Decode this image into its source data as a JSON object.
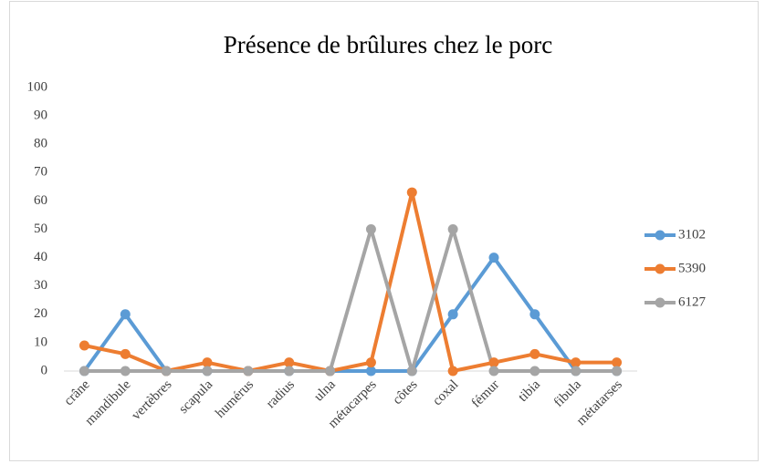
{
  "chart_data": {
    "type": "line",
    "title": "Présence de brûlures chez le porc",
    "categories": [
      "crâne",
      "mandibule",
      "vertèbres",
      "scapula",
      "humérus",
      "radius",
      "ulna",
      "métacarpes",
      "côtes",
      "coxal",
      "fémur",
      "tibia",
      "fibula",
      "métatarses"
    ],
    "series": [
      {
        "name": "3102",
        "color": "#5b9bd5",
        "values": [
          0,
          20,
          0,
          0,
          0,
          0,
          0,
          0,
          0,
          20,
          40,
          20,
          0,
          0
        ]
      },
      {
        "name": "5390",
        "color": "#ed7d31",
        "values": [
          9,
          6,
          0,
          3,
          0,
          3,
          0,
          3,
          63,
          0,
          3,
          6,
          3,
          3
        ]
      },
      {
        "name": "6127",
        "color": "#a5a5a5",
        "values": [
          0,
          0,
          0,
          0,
          0,
          0,
          0,
          50,
          0,
          50,
          0,
          0,
          0,
          0
        ]
      }
    ],
    "ylim": [
      0,
      100
    ],
    "yticks": [
      0,
      10,
      20,
      30,
      40,
      50,
      60,
      70,
      80,
      90,
      100
    ],
    "grid": false,
    "legend": "right"
  }
}
